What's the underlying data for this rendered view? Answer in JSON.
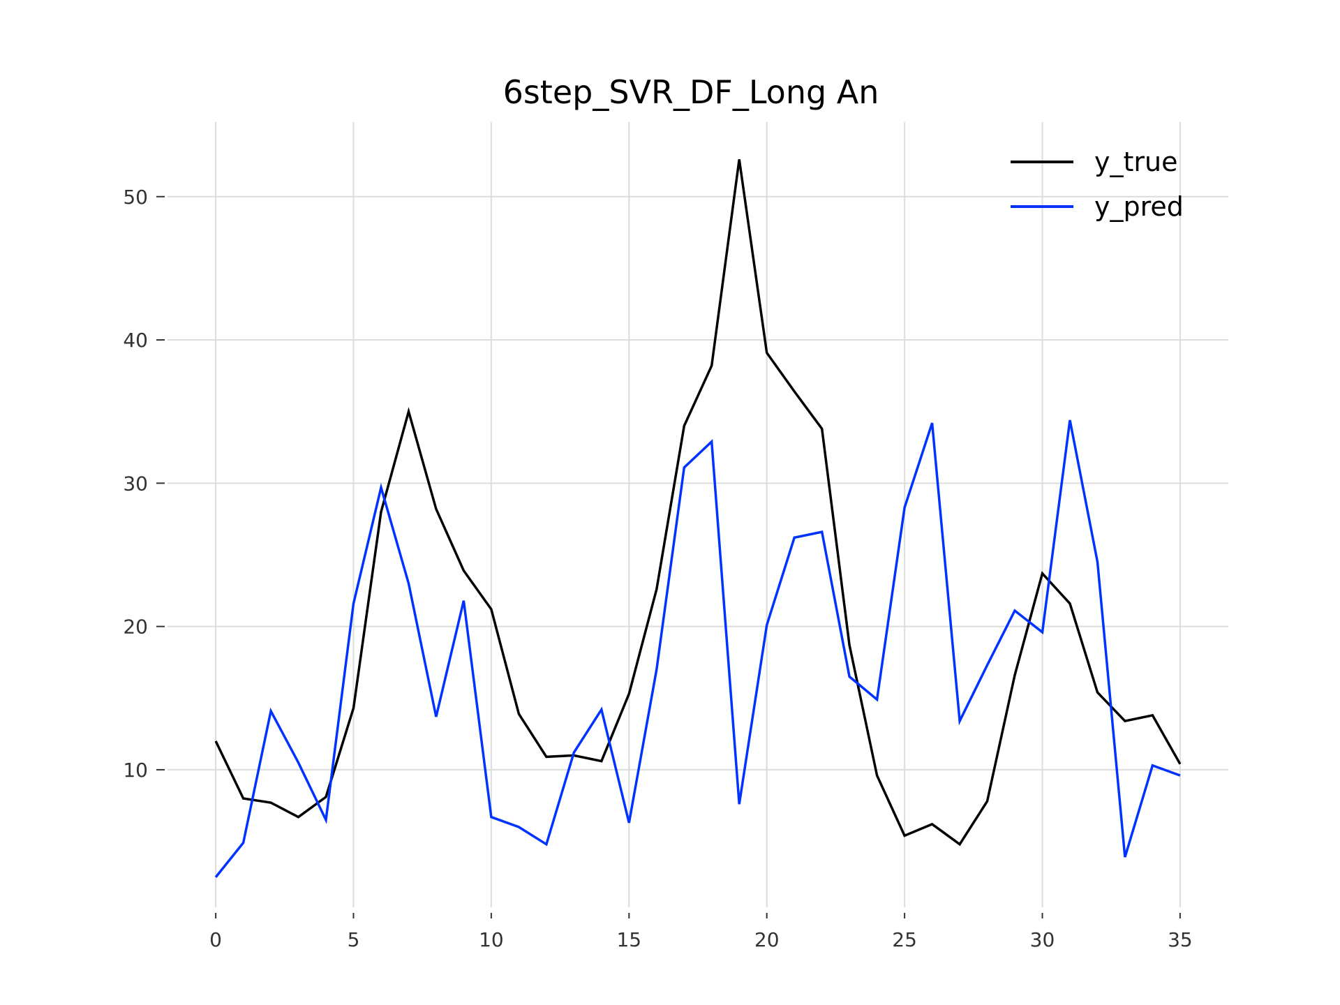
{
  "chart_data": {
    "type": "line",
    "title": "6step_SVR_DF_Long An",
    "xlabel": "",
    "ylabel": "",
    "x": [
      0,
      1,
      2,
      3,
      4,
      5,
      6,
      7,
      8,
      9,
      10,
      11,
      12,
      13,
      14,
      15,
      16,
      17,
      18,
      19,
      20,
      21,
      22,
      23,
      24,
      25,
      26,
      27,
      28,
      29,
      30,
      31,
      32,
      33,
      34,
      35
    ],
    "xlim": [
      -1.75,
      36.75
    ],
    "ylim": [
      0.4,
      55.2
    ],
    "xticks": [
      0,
      5,
      10,
      15,
      20,
      25,
      30,
      35
    ],
    "yticks": [
      10,
      20,
      30,
      40,
      50
    ],
    "grid": true,
    "legend_position": "top-right",
    "series": [
      {
        "name": "y_true",
        "color": "#000000",
        "values": [
          12.0,
          8.0,
          7.7,
          6.7,
          8.1,
          14.3,
          28.0,
          35.0,
          28.2,
          23.9,
          21.2,
          13.9,
          10.9,
          11.0,
          10.6,
          15.3,
          22.6,
          34.0,
          38.2,
          52.6,
          39.1,
          36.4,
          33.8,
          18.7,
          9.6,
          5.4,
          6.2,
          4.8,
          7.8,
          16.6,
          23.7,
          21.6,
          15.4,
          13.4,
          13.8,
          10.4
        ]
      },
      {
        "name": "y_pred",
        "color": "#0033ff",
        "values": [
          2.5,
          4.9,
          14.1,
          10.5,
          6.5,
          21.6,
          29.7,
          23.0,
          13.7,
          21.8,
          6.7,
          6.0,
          4.8,
          11.2,
          14.2,
          6.3,
          17.0,
          31.1,
          32.9,
          7.6,
          20.1,
          26.2,
          26.6,
          16.5,
          14.9,
          28.3,
          34.2,
          13.4,
          17.3,
          21.1,
          19.6,
          34.4,
          24.5,
          3.9,
          10.3,
          9.6
        ]
      }
    ]
  }
}
